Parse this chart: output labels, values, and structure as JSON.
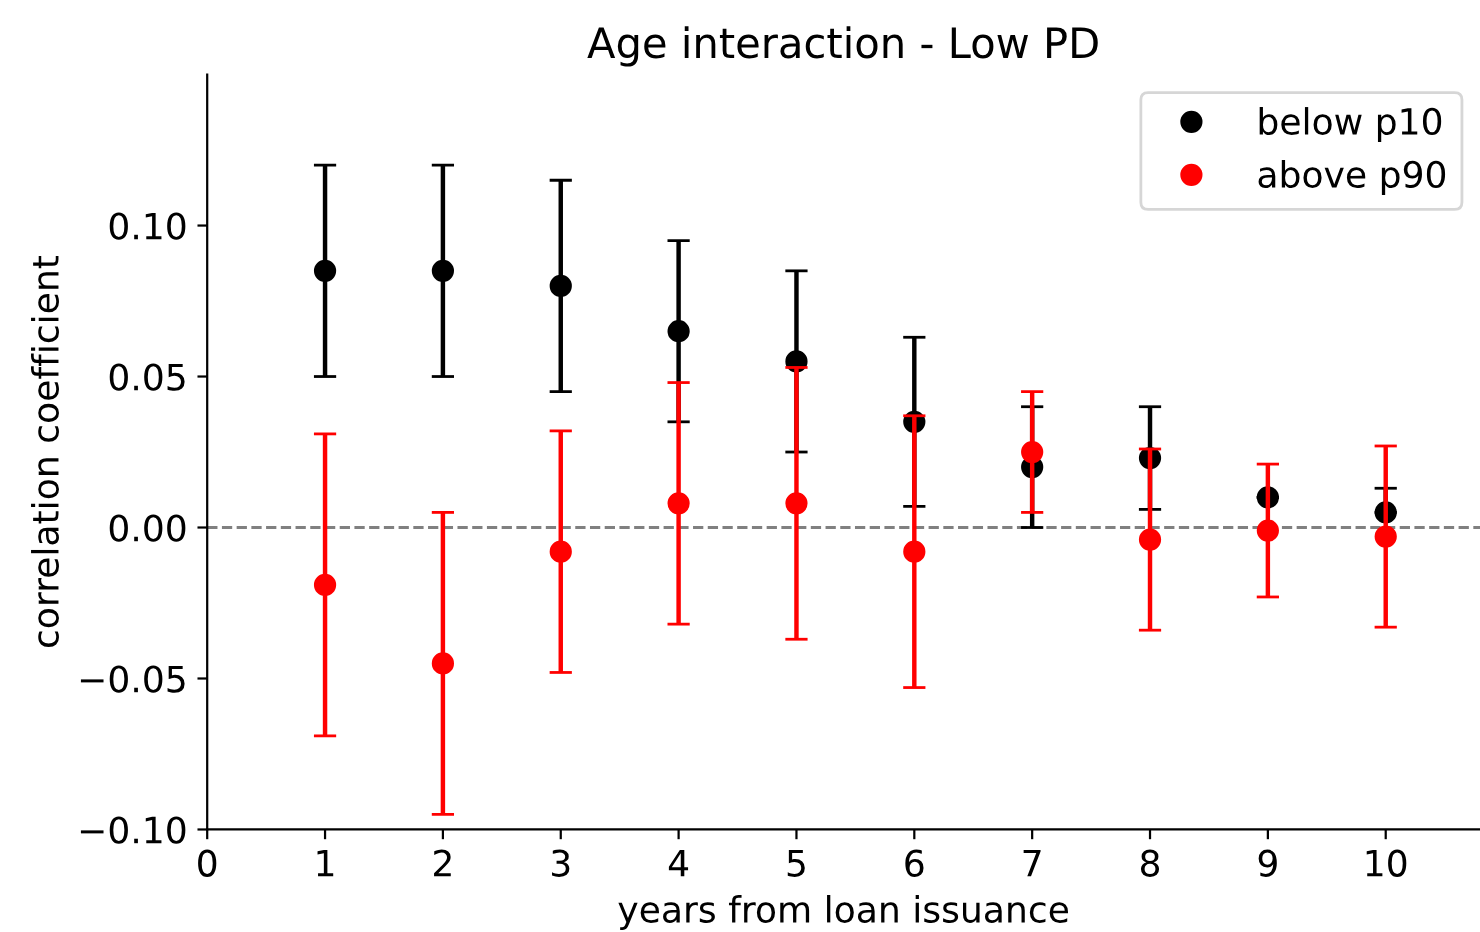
{
  "chart_data": {
    "type": "scatter",
    "title": "Age interaction - Low PD",
    "xlabel": "years from loan issuance",
    "ylabel": "correlation coefficient",
    "x": [
      1,
      2,
      3,
      4,
      5,
      6,
      7,
      8,
      9,
      10
    ],
    "series": [
      {
        "name": "below p10",
        "color": "#000000",
        "values": [
          0.085,
          0.085,
          0.08,
          0.065,
          0.055,
          0.035,
          0.02,
          0.023,
          0.01,
          0.005
        ],
        "errors": [
          [
            0.05,
            0.12
          ],
          [
            0.05,
            0.12
          ],
          [
            0.045,
            0.115
          ],
          [
            0.035,
            0.095
          ],
          [
            0.025,
            0.085
          ],
          [
            0.007,
            0.063
          ],
          [
            0.0,
            0.04
          ],
          [
            0.006,
            0.04
          ],
          null,
          [
            0.005,
            0.013
          ]
        ]
      },
      {
        "name": "above p90",
        "color": "#ff0000",
        "values": [
          -0.019,
          -0.045,
          -0.008,
          0.008,
          0.008,
          -0.008,
          0.025,
          -0.004,
          -0.001,
          -0.003
        ],
        "errors": [
          [
            -0.069,
            0.031
          ],
          [
            -0.095,
            0.005
          ],
          [
            -0.048,
            0.032
          ],
          [
            -0.032,
            0.048
          ],
          [
            -0.037,
            0.053
          ],
          [
            -0.053,
            0.037
          ],
          [
            0.005,
            0.045
          ],
          [
            -0.034,
            0.026
          ],
          [
            -0.023,
            0.021
          ],
          [
            -0.033,
            0.027
          ]
        ]
      }
    ],
    "xlim": [
      0,
      10.8
    ],
    "ylim": [
      -0.1,
      0.15
    ],
    "xticks": [
      0,
      1,
      2,
      3,
      4,
      5,
      6,
      7,
      8,
      9,
      10
    ],
    "yticks": [
      {
        "value": -0.1,
        "label": "−0.10"
      },
      {
        "value": -0.05,
        "label": "−0.05"
      },
      {
        "value": 0,
        "label": "0.00"
      },
      {
        "value": 0.05,
        "label": "0.05"
      },
      {
        "value": 0.1,
        "label": "0.10"
      }
    ],
    "ref_lines": [
      {
        "axis": "y",
        "value": 0,
        "color": "#808080",
        "line_style": "dashed"
      }
    ],
    "marker": "circle",
    "grid": false,
    "legend": "top right"
  }
}
